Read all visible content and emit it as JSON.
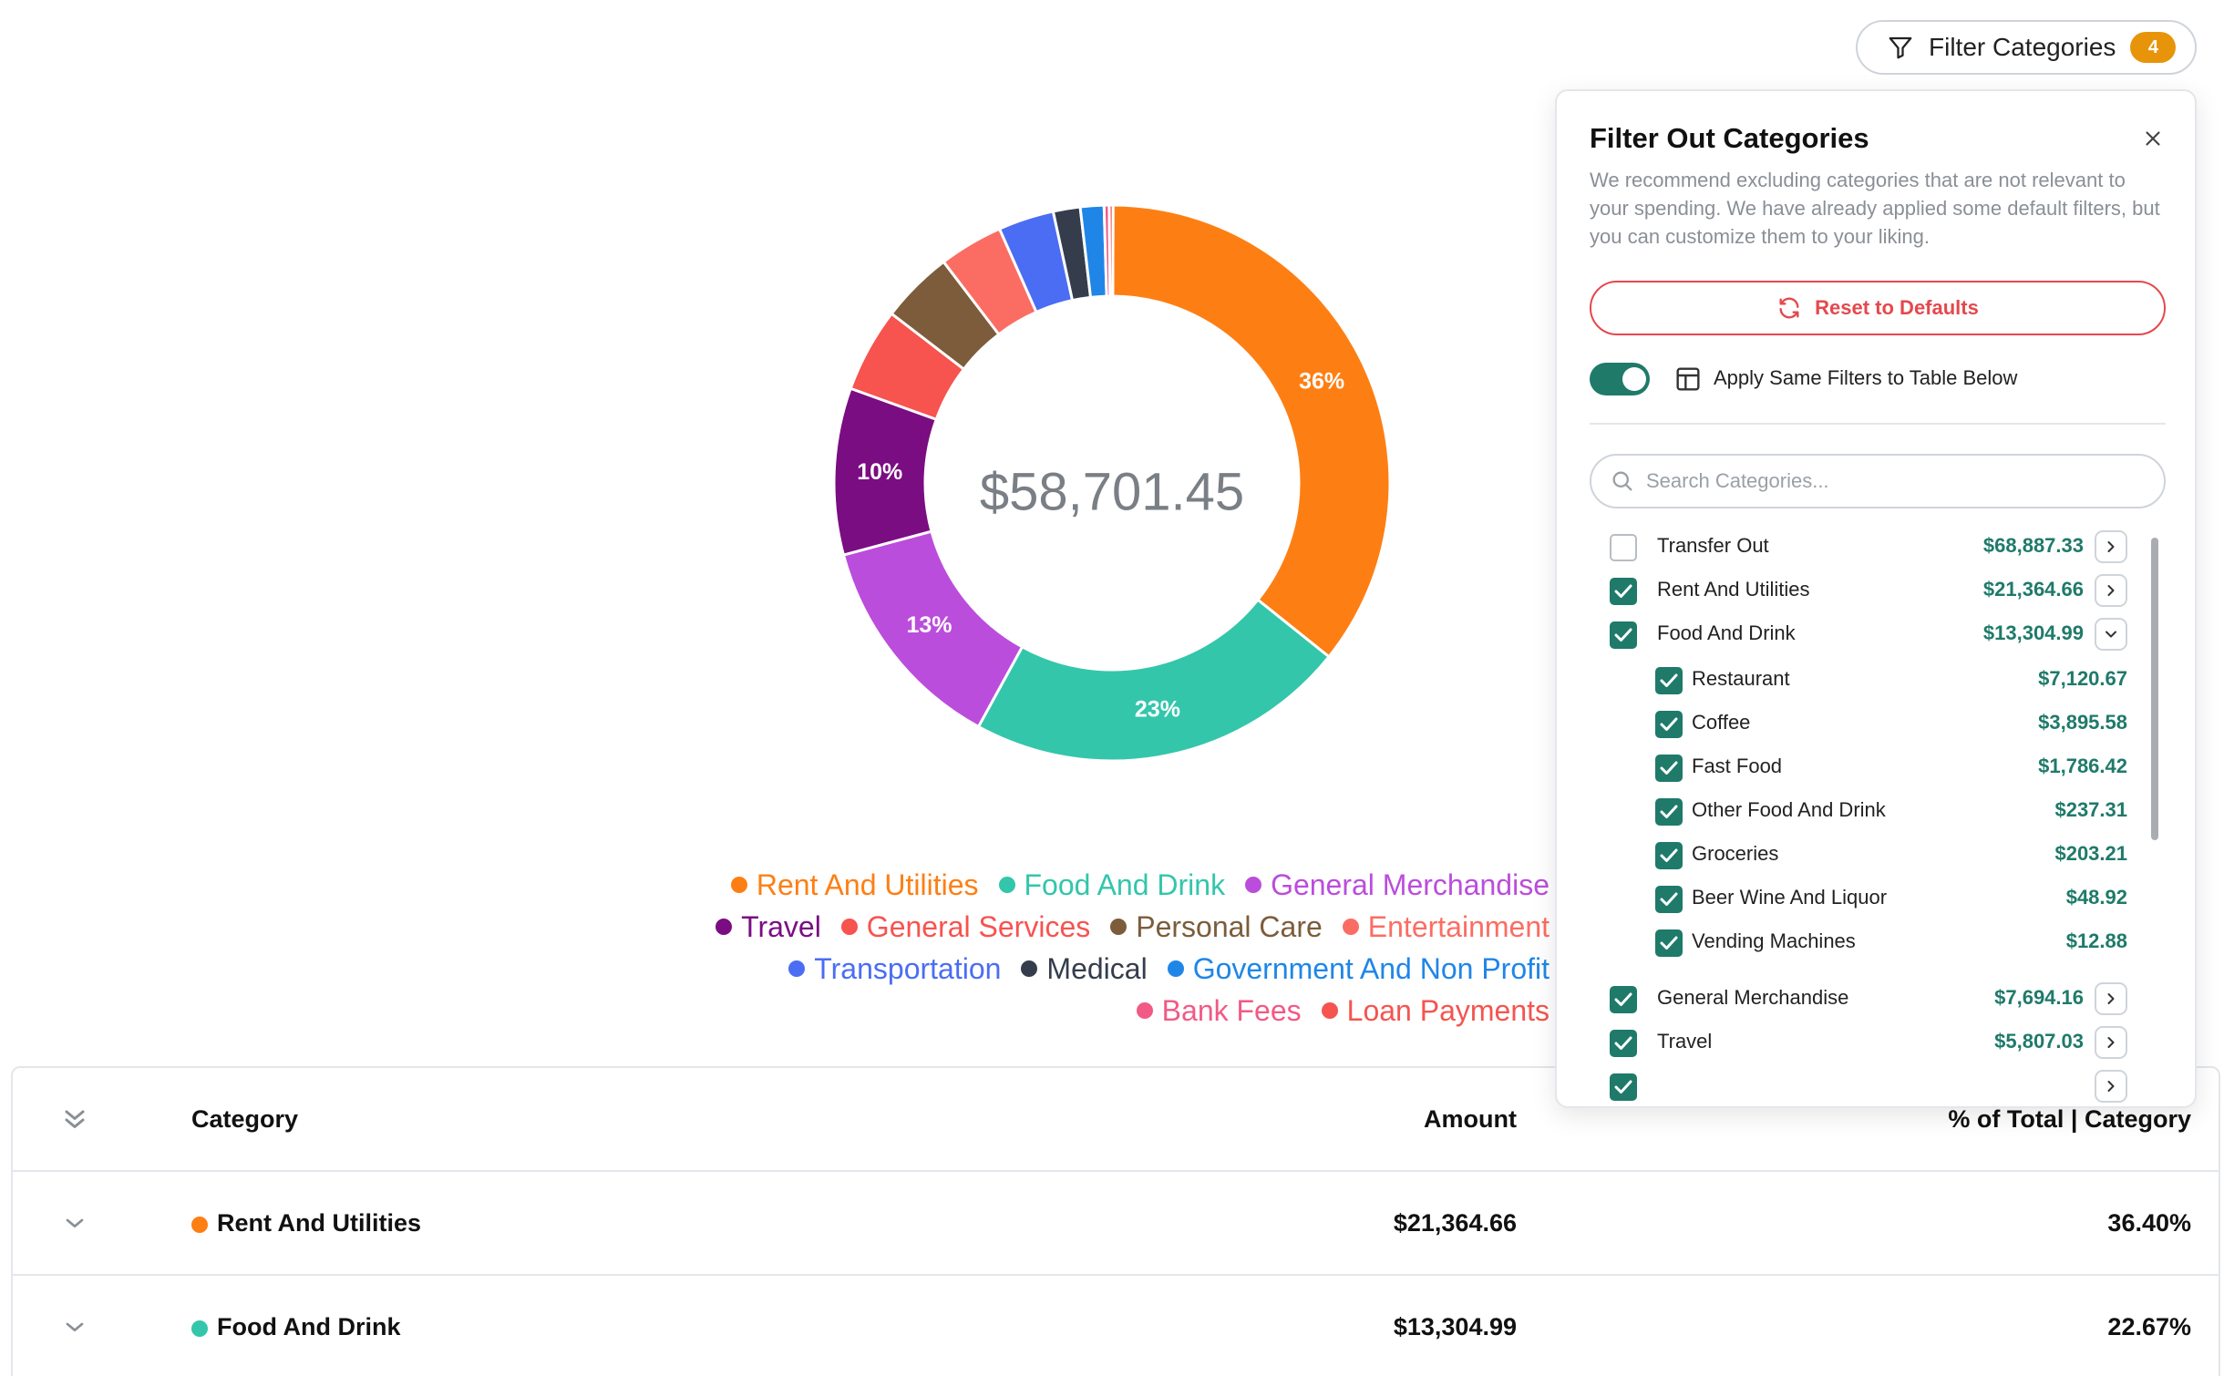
{
  "chart_data": {
    "type": "pie",
    "center_label": "$58,701.45",
    "categories": [
      "Rent And Utilities",
      "Food And Drink",
      "General Merchandise",
      "Travel",
      "General Services",
      "Personal Care",
      "Entertainment",
      "Transportation",
      "Medical",
      "Government And Non Profit",
      "Bank Fees",
      "Loan Payments"
    ],
    "values": [
      36.4,
      22.67,
      13.11,
      9.89,
      5.0,
      4.3,
      3.8,
      3.3,
      1.6,
      1.4,
      0.3,
      0.23
    ],
    "slice_labels": [
      "36%",
      "23%",
      "13%",
      "10%",
      "",
      "",
      "",
      "",
      "",
      "",
      "",
      ""
    ],
    "colors": [
      "#fd7f14",
      "#33c6ab",
      "#bb4ddc",
      "#7a0d82",
      "#f7534f",
      "#7c5c3b",
      "#fb6d63",
      "#4b6df3",
      "#353d4c",
      "#1f86e8",
      "#f15a85",
      "#f5544f"
    ]
  },
  "legend": {
    "rows": [
      [
        {
          "label": "Rent And Utilities",
          "color": "#fd7f14"
        },
        {
          "label": "Food And Drink",
          "color": "#33c6ab"
        },
        {
          "label": "General Merchandise",
          "color": "#bb4ddc"
        }
      ],
      [
        {
          "label": "Travel",
          "color": "#7a0d82"
        },
        {
          "label": "General Services",
          "color": "#f7534f"
        },
        {
          "label": "Personal Care",
          "color": "#7c5c3b"
        },
        {
          "label": "Entertainment",
          "color": "#fb6d63"
        }
      ],
      [
        {
          "label": "Transportation",
          "color": "#4b6df3"
        },
        {
          "label": "Medical",
          "color": "#353d4c"
        },
        {
          "label": "Government And Non Profit",
          "color": "#1f86e8"
        }
      ],
      [
        {
          "label": "Bank Fees",
          "color": "#f15a85"
        },
        {
          "label": "Loan Payments",
          "color": "#f5544f"
        }
      ]
    ]
  },
  "filter_button": {
    "label": "Filter Categories",
    "badge": "4"
  },
  "table": {
    "headers": {
      "category": "Category",
      "amount": "Amount",
      "percent": "% of Total | Category"
    },
    "rows": [
      {
        "category": "Rent And Utilities",
        "color": "#fd7f14",
        "amount": "$21,364.66",
        "percent": "36.40%"
      },
      {
        "category": "Food And Drink",
        "color": "#33c6ab",
        "amount": "$13,304.99",
        "percent": "22.67%"
      }
    ]
  },
  "panel": {
    "title": "Filter Out Categories",
    "description": "We recommend excluding categories that are not relevant to your spending. We have already applied some default filters, but you can customize them to your liking.",
    "reset_label": "Reset to Defaults",
    "apply_label": "Apply Same Filters to Table Below",
    "apply_enabled": true,
    "search_placeholder": "Search Categories...",
    "categories": [
      {
        "name": "Transfer Out",
        "amount": "$68,887.33",
        "checked": false,
        "expand": "right",
        "sub": false
      },
      {
        "name": "Rent And Utilities",
        "amount": "$21,364.66",
        "checked": true,
        "expand": "right",
        "sub": false
      },
      {
        "name": "Food And Drink",
        "amount": "$13,304.99",
        "checked": true,
        "expand": "down",
        "sub": false
      },
      {
        "name": "Restaurant",
        "amount": "$7,120.67",
        "checked": true,
        "expand": "",
        "sub": true
      },
      {
        "name": "Coffee",
        "amount": "$3,895.58",
        "checked": true,
        "expand": "",
        "sub": true
      },
      {
        "name": "Fast Food",
        "amount": "$1,786.42",
        "checked": true,
        "expand": "",
        "sub": true
      },
      {
        "name": "Other Food And Drink",
        "amount": "$237.31",
        "checked": true,
        "expand": "",
        "sub": true
      },
      {
        "name": "Groceries",
        "amount": "$203.21",
        "checked": true,
        "expand": "",
        "sub": true
      },
      {
        "name": "Beer Wine And Liquor",
        "amount": "$48.92",
        "checked": true,
        "expand": "",
        "sub": true
      },
      {
        "name": "Vending Machines",
        "amount": "$12.88",
        "checked": true,
        "expand": "",
        "sub": true
      },
      {
        "name": "General Merchandise",
        "amount": "$7,694.16",
        "checked": true,
        "expand": "right",
        "sub": false
      },
      {
        "name": "Travel",
        "amount": "$5,807.03",
        "checked": true,
        "expand": "right",
        "sub": false
      },
      {
        "name": "",
        "amount": "",
        "checked": true,
        "expand": "right",
        "sub": false
      }
    ]
  }
}
